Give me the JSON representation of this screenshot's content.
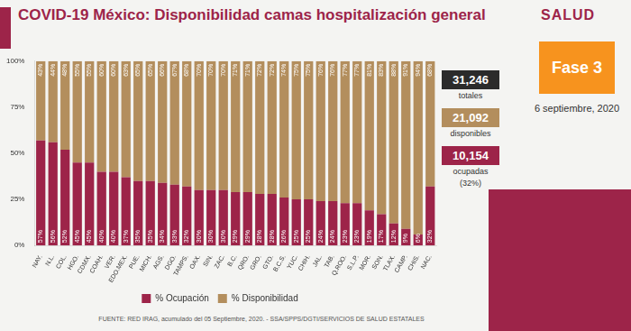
{
  "chart_data": {
    "type": "bar",
    "title": "COVID-19 México: Disponibilidad camas hospitalización general",
    "source": "FUENTE: RED IRAG, acumulado del 05 Septiembre, 2020. - SSA/SPPS/DGTI/SERVICIOS DE SALUD ESTATALES",
    "categories": [
      "NAY.",
      "N.L.",
      "COL.",
      "HGO.",
      "CDMX.",
      "COAH.",
      "VER.",
      "EDO.MEX.",
      "PUE.",
      "MICH.",
      "AGS.",
      "DGO.",
      "TAMPS.",
      "OAX.",
      "SIN.",
      "ZAC.",
      "B.C.",
      "QRO.",
      "GRO.",
      "GTO.",
      "B.C.S.",
      "YUC.",
      "CHIH.",
      "JAL.",
      "TAB.",
      "Q.ROO.",
      "S.L.P.",
      "MOR.",
      "SON.",
      "TLAX.",
      "CAMP.",
      "CHIS.",
      "NAC."
    ],
    "series": [
      {
        "name": "% Ocupación",
        "color": "#9d2449",
        "values": [
          57,
          56,
          52,
          45,
          45,
          40,
          40,
          37,
          35,
          35,
          34,
          33,
          32,
          30,
          30,
          30,
          29,
          29,
          28,
          28,
          26,
          25,
          25,
          24,
          24,
          23,
          23,
          19,
          17,
          12,
          9,
          6,
          32
        ],
        "value_labels": [
          "57%",
          "56%",
          "52%",
          "45%",
          "45%",
          "40%",
          "40%",
          "37%",
          "35%",
          "35%",
          "34%",
          "33%",
          "32%",
          "30%",
          "30%",
          "30%",
          "29%",
          "29%",
          "28%",
          "28%",
          "26%",
          "25%",
          "25%",
          "24%",
          "24%",
          "23%",
          "23%",
          "19%",
          "17%",
          "12%",
          "9%",
          "6%",
          "32%"
        ]
      },
      {
        "name": "% Disponibilidad",
        "color": "#b38e5d",
        "values": [
          43,
          44,
          48,
          55,
          55,
          60,
          60,
          63,
          65,
          65,
          66,
          67,
          68,
          70,
          70,
          70,
          71,
          71,
          72,
          72,
          74,
          75,
          75,
          76,
          76,
          77,
          77,
          81,
          83,
          88,
          91,
          94,
          68
        ],
        "value_labels": [
          "43%",
          "44%",
          "48%",
          "55%",
          "55%",
          "60%",
          "60%",
          "63%",
          "65%",
          "65%",
          "66%",
          "67%",
          "68%",
          "70%",
          "70%",
          "70%",
          "71%",
          "71%",
          "72%",
          "72%",
          "74%",
          "75%",
          "75%",
          "76%",
          "76%",
          "77%",
          "77%",
          "81%",
          "83%",
          "88%",
          "91%",
          "94%",
          "68%"
        ]
      }
    ],
    "ylim": [
      0,
      100
    ],
    "yticks": [
      {
        "value": 0,
        "label": "0%"
      },
      {
        "value": 25,
        "label": "25%"
      },
      {
        "value": 50,
        "label": "50%"
      },
      {
        "value": 75,
        "label": "75%"
      },
      {
        "value": 100,
        "label": "100%"
      }
    ],
    "stacked": true,
    "data_labels": true,
    "grid": false,
    "legend": "bottom"
  },
  "page": {
    "logo": "SALUD",
    "phase": "Fase 3",
    "date": "6 septiembre, 2020",
    "stats": [
      {
        "value": "31,246",
        "caption": "totales",
        "color": "#2b2b2b"
      },
      {
        "value": "21,092",
        "caption": "disponibles",
        "color": "#b38e5d"
      },
      {
        "value": "10,154",
        "caption": "ocupadas",
        "note": "(32%)",
        "color": "#9d2449"
      }
    ]
  }
}
